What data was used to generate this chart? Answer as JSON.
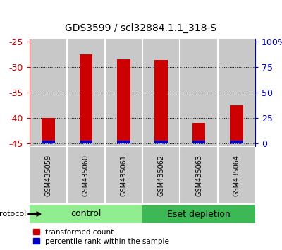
{
  "title": "GDS3599 / scl32884.1.1_318-S",
  "samples": [
    "GSM435059",
    "GSM435060",
    "GSM435061",
    "GSM435062",
    "GSM435063",
    "GSM435064"
  ],
  "transformed_counts": [
    -40.0,
    -27.5,
    -28.5,
    -28.7,
    -41.0,
    -37.5
  ],
  "blue_heights": [
    0.6,
    0.6,
    0.6,
    0.6,
    0.6,
    0.6
  ],
  "ylim": [
    -45.5,
    -24.5
  ],
  "yticks_left": [
    -45,
    -40,
    -35,
    -30,
    -25
  ],
  "yticks_right": [
    0,
    25,
    50,
    75,
    100
  ],
  "yticks_right_labels": [
    "0",
    "25",
    "50",
    "75",
    "100%"
  ],
  "groups": [
    {
      "label": "control",
      "indices": [
        0,
        1,
        2
      ],
      "color": "#90EE90"
    },
    {
      "label": "Eset depletion",
      "indices": [
        3,
        4,
        5
      ],
      "color": "#3CB954"
    }
  ],
  "red_color": "#CC0000",
  "blue_color": "#0000CC",
  "protocol_label": "protocol",
  "legend_red": "transformed count",
  "legend_blue": "percentile rank within the sample",
  "bar_bottom": -45.0,
  "sample_bg_color": "#C8C8C8",
  "left_axis_color": "#CC0000",
  "right_axis_color": "#0000CC",
  "title_fontsize": 10,
  "tick_fontsize": 9,
  "bar_width": 0.35
}
